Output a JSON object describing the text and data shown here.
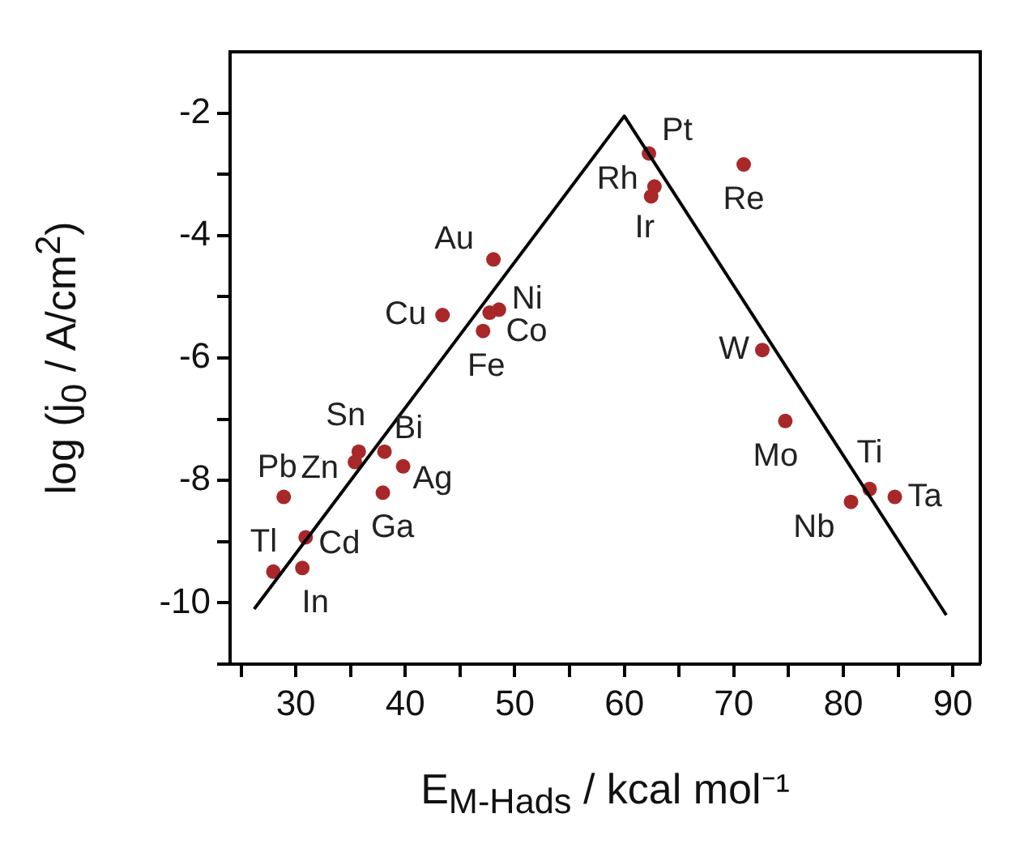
{
  "chart_data": {
    "type": "scatter",
    "xlabel": "E$_{M-Hads}$ / kcal mol⁻¹",
    "ylabel": "log (j$_{0}$ / A/cm$^{2}$)",
    "xlim": [
      24,
      92.5
    ],
    "ylim": [
      -11,
      -1
    ],
    "xticks": [
      {
        "value": 25,
        "label": null
      },
      30,
      {
        "value": 35,
        "label": null
      },
      40,
      {
        "value": 45,
        "label": null
      },
      50,
      {
        "value": 55,
        "label": null
      },
      60,
      {
        "value": 65,
        "label": null
      },
      70,
      {
        "value": 75,
        "label": null
      },
      80,
      {
        "value": 85,
        "label": null
      },
      90
    ],
    "yticks": [
      {
        "value": -11,
        "label": null
      },
      -10,
      {
        "value": -9,
        "label": null
      },
      -8,
      {
        "value": -7,
        "label": null
      },
      -6,
      {
        "value": -5,
        "label": null
      },
      -4,
      {
        "value": -3,
        "label": null
      },
      -2
    ],
    "series": [
      {
        "type": "line",
        "color": "#000000",
        "marker": "none",
        "line_style": "solid",
        "x": [
          26.2,
          60,
          89.4
        ],
        "values": [
          -10.1,
          -2.05,
          -10.2
        ]
      },
      {
        "type": "scatter",
        "color": "#a8282a",
        "marker": "circle",
        "x": [
          62.25,
          62.75,
          62.45,
          70.9,
          48.05,
          43.4,
          48.55,
          47.7,
          47.1,
          72.6,
          74.7,
          82.4,
          84.7,
          80.7,
          35.75,
          35.4,
          38.1,
          39.8,
          37.95,
          28.9,
          30.9,
          27.95,
          30.6
        ],
        "values": [
          -2.66,
          -3.2,
          -3.36,
          -2.84,
          -4.39,
          -5.3,
          -5.21,
          -5.26,
          -5.56,
          -5.87,
          -7.03,
          -8.14,
          -8.27,
          -8.35,
          -7.53,
          -7.7,
          -7.53,
          -7.77,
          -8.2,
          -8.27,
          -8.93,
          -9.49,
          -9.43
        ]
      }
    ],
    "annotations": [
      {
        "text": "Pt",
        "x": 62.25,
        "y": -2.66
      },
      {
        "text": "Rh",
        "x": 62.75,
        "y": -3.2
      },
      {
        "text": "Ir",
        "x": 62.45,
        "y": -3.36
      },
      {
        "text": "Re",
        "x": 70.9,
        "y": -2.84
      },
      {
        "text": "Au",
        "x": 48.05,
        "y": -4.39
      },
      {
        "text": "Cu",
        "x": 43.4,
        "y": -5.3
      },
      {
        "text": "Ni",
        "x": 48.55,
        "y": -5.21
      },
      {
        "text": "Co",
        "x": 47.7,
        "y": -5.26
      },
      {
        "text": "Fe",
        "x": 47.1,
        "y": -5.56
      },
      {
        "text": "W",
        "x": 72.6,
        "y": -5.87
      },
      {
        "text": "Mo",
        "x": 74.7,
        "y": -7.03
      },
      {
        "text": "Ti",
        "x": 82.4,
        "y": -8.14
      },
      {
        "text": "Ta",
        "x": 84.7,
        "y": -8.27
      },
      {
        "text": "Nb",
        "x": 80.7,
        "y": -8.35
      },
      {
        "text": "Sn",
        "x": 35.75,
        "y": -7.53
      },
      {
        "text": "Zn",
        "x": 35.4,
        "y": -7.7
      },
      {
        "text": "Bi",
        "x": 38.1,
        "y": -7.53
      },
      {
        "text": "Ag",
        "x": 39.8,
        "y": -7.77
      },
      {
        "text": "Ga",
        "x": 37.95,
        "y": -8.2
      },
      {
        "text": "Pb",
        "x": 28.9,
        "y": -8.27
      },
      {
        "text": "Cd",
        "x": 30.9,
        "y": -8.93
      },
      {
        "text": "Tl",
        "x": 27.95,
        "y": -9.49
      },
      {
        "text": "In",
        "x": 30.6,
        "y": -9.43
      }
    ]
  }
}
